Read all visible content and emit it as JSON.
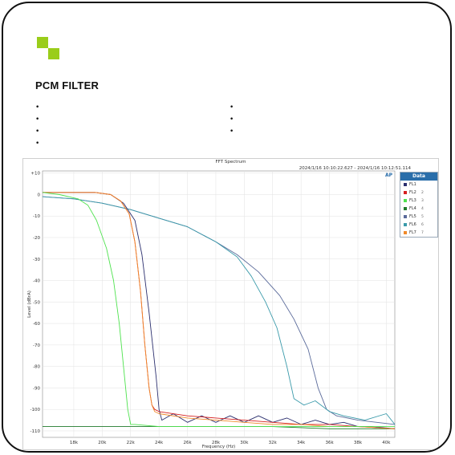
{
  "page": {
    "heading": "PCM FILTER",
    "bullets_left": [
      "",
      "",
      "",
      ""
    ],
    "bullets_right": [
      "",
      "",
      ""
    ]
  },
  "chart_data": {
    "type": "line",
    "title": "FFT Spectrum",
    "timestamp": "2024/1/16 10:10:22.627 - 2024/1/16 10:12:51.114",
    "corner_label": "AP",
    "xlabel": "Frequency (Hz)",
    "ylabel": "Level (dBrA)",
    "xlim": [
      15800,
      40600
    ],
    "ylim": [
      -113,
      11
    ],
    "x_ticks": [
      {
        "v": 18000,
        "label": "18k"
      },
      {
        "v": 20000,
        "label": "20k"
      },
      {
        "v": 22000,
        "label": "22k"
      },
      {
        "v": 24000,
        "label": "24k"
      },
      {
        "v": 26000,
        "label": "26k"
      },
      {
        "v": 28000,
        "label": "28k"
      },
      {
        "v": 30000,
        "label": "30k"
      },
      {
        "v": 32000,
        "label": "32k"
      },
      {
        "v": 34000,
        "label": "34k"
      },
      {
        "v": 36000,
        "label": "36k"
      },
      {
        "v": 38000,
        "label": "38k"
      },
      {
        "v": 40000,
        "label": "40k"
      }
    ],
    "y_ticks": [
      10,
      0,
      -10,
      -20,
      -30,
      -40,
      -50,
      -60,
      -70,
      -80,
      -90,
      -100,
      -110
    ],
    "y_tick_labels": [
      "+10",
      "0",
      "-10",
      "-20",
      "-30",
      "-40",
      "-50",
      "-60",
      "-70",
      "-80",
      "-90",
      "-100",
      "-110"
    ],
    "grid": true,
    "legend": {
      "title": "Data",
      "placement": "right"
    },
    "series": [
      {
        "name": "FL1",
        "num": "",
        "color": "#2b2f6e",
        "x": [
          15800,
          19500,
          20600,
          21500,
          22300,
          22800,
          23300,
          23800,
          24000,
          24200,
          25000,
          26000,
          27000,
          28000,
          29000,
          30000,
          31000,
          32000,
          33000,
          34000,
          35000,
          36000,
          37000,
          38000,
          39000,
          40600
        ],
        "y": [
          1,
          1,
          0,
          -4,
          -12,
          -28,
          -55,
          -85,
          -100,
          -105,
          -102,
          -106,
          -103,
          -106,
          -103,
          -106,
          -103,
          -106,
          -104,
          -107,
          -105,
          -107,
          -106,
          -108,
          -108,
          -109
        ]
      },
      {
        "name": "FL2",
        "num": "2",
        "color": "#d62020",
        "x": [
          15800,
          19500,
          20600,
          21300,
          21900,
          22300,
          22700,
          23000,
          23300,
          23500,
          23700,
          24000,
          26000,
          28000,
          30000,
          32000,
          34000,
          36000,
          38000,
          40600
        ],
        "y": [
          1,
          1,
          0,
          -3,
          -9,
          -22,
          -45,
          -70,
          -90,
          -98,
          -100,
          -101,
          -103,
          -104,
          -105,
          -106,
          -107,
          -107,
          -108,
          -109
        ]
      },
      {
        "name": "FL3",
        "num": "3",
        "color": "#4ee24e",
        "x": [
          15800,
          17000,
          18300,
          19000,
          19600,
          20300,
          20800,
          21200,
          21500,
          21800,
          22000,
          22300,
          24000,
          26000,
          30000,
          34000,
          40600
        ],
        "y": [
          1,
          0,
          -2,
          -5,
          -12,
          -25,
          -40,
          -60,
          -80,
          -100,
          -107,
          -107,
          -108,
          -108,
          -108,
          -108,
          -108
        ]
      },
      {
        "name": "FL4",
        "num": "4",
        "color": "#1f7a2a",
        "x": [
          15800,
          20000,
          23800,
          24000,
          28000,
          32000,
          36000,
          40600
        ],
        "y": [
          -108,
          -108,
          -108,
          -108,
          -108,
          -108,
          -109,
          -109
        ]
      },
      {
        "name": "FL5",
        "num": "5",
        "color": "#5a6a9a",
        "x": [
          15800,
          18000,
          20000,
          22000,
          24000,
          26000,
          28000,
          29500,
          31000,
          32500,
          33500,
          34500,
          35200,
          35800,
          36500,
          38000,
          40600
        ],
        "y": [
          -1,
          -2,
          -4,
          -7,
          -11,
          -15,
          -22,
          -28,
          -36,
          -47,
          -58,
          -72,
          -90,
          -100,
          -103,
          -105,
          -107
        ]
      },
      {
        "name": "FL6",
        "num": "6",
        "color": "#3a9aaa",
        "x": [
          15800,
          18000,
          20000,
          22000,
          24000,
          26000,
          28000,
          29500,
          30500,
          31500,
          32300,
          33000,
          33500,
          34200,
          35000,
          36000,
          37000,
          38500,
          40000,
          40600
        ],
        "y": [
          -1,
          -2,
          -4,
          -7,
          -11,
          -15,
          -22,
          -29,
          -38,
          -50,
          -62,
          -80,
          -95,
          -98,
          -96,
          -101,
          -103,
          -105,
          -102,
          -107
        ]
      },
      {
        "name": "FL7",
        "num": "7",
        "color": "#f08a2a",
        "x": [
          15800,
          19500,
          20600,
          21300,
          21900,
          22300,
          22700,
          23000,
          23300,
          23500,
          23700,
          24000,
          26000,
          28000,
          30000,
          32000,
          34000,
          36000,
          38000,
          40600
        ],
        "y": [
          1,
          1,
          0,
          -3,
          -9,
          -22,
          -45,
          -70,
          -90,
          -98,
          -101,
          -102,
          -104,
          -105,
          -106,
          -107,
          -107,
          -108,
          -108,
          -109
        ]
      }
    ]
  }
}
